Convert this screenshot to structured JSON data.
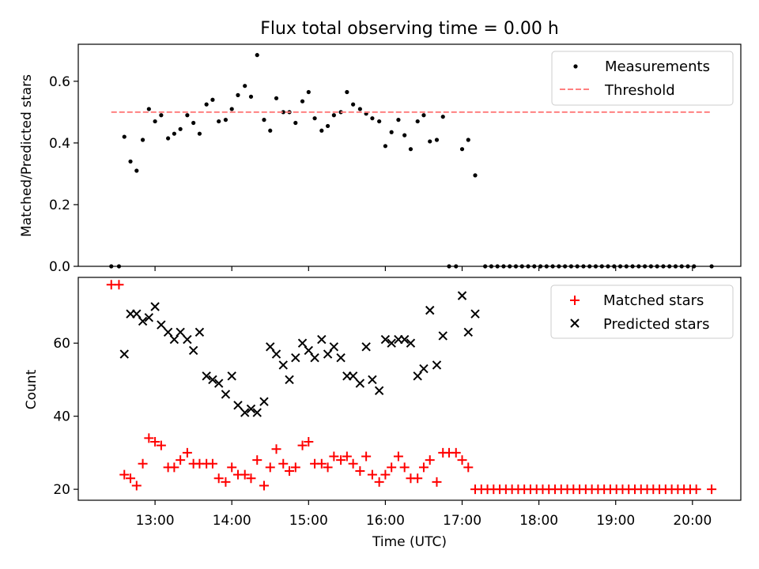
{
  "figure": {
    "title": "Flux total observing time = 0.00 h"
  },
  "chart_data": [
    {
      "type": "scatter",
      "xlabel": "",
      "ylabel": "Matched/Predicted stars",
      "xlim": [
        12.0,
        20.63
      ],
      "ylim": [
        0.0,
        0.72
      ],
      "yticks": [
        0.0,
        0.2,
        0.4,
        0.6
      ],
      "ytick_labels": [
        "0.0",
        "0.2",
        "0.4",
        "0.6"
      ],
      "grid": false,
      "legend": {
        "placement": "top-right",
        "entries": [
          "Measurements",
          "Threshold"
        ]
      },
      "series": [
        {
          "name": "Measurements",
          "marker": "dot",
          "color": "#000000",
          "points": [
            [
              12.43,
              0.0
            ],
            [
              12.53,
              0.0
            ],
            [
              12.6,
              0.42
            ],
            [
              12.68,
              0.34
            ],
            [
              12.76,
              0.31
            ],
            [
              12.84,
              0.41
            ],
            [
              12.92,
              0.51
            ],
            [
              13.0,
              0.47
            ],
            [
              13.08,
              0.49
            ],
            [
              13.17,
              0.415
            ],
            [
              13.25,
              0.43
            ],
            [
              13.33,
              0.445
            ],
            [
              13.42,
              0.49
            ],
            [
              13.5,
              0.465
            ],
            [
              13.58,
              0.43
            ],
            [
              13.67,
              0.525
            ],
            [
              13.75,
              0.54
            ],
            [
              13.83,
              0.47
            ],
            [
              13.92,
              0.475
            ],
            [
              14.0,
              0.51
            ],
            [
              14.08,
              0.555
            ],
            [
              14.17,
              0.585
            ],
            [
              14.25,
              0.55
            ],
            [
              14.33,
              0.685
            ],
            [
              14.42,
              0.475
            ],
            [
              14.5,
              0.44
            ],
            [
              14.58,
              0.545
            ],
            [
              14.67,
              0.5
            ],
            [
              14.75,
              0.5
            ],
            [
              14.83,
              0.465
            ],
            [
              14.92,
              0.535
            ],
            [
              15.0,
              0.565
            ],
            [
              15.08,
              0.48
            ],
            [
              15.17,
              0.44
            ],
            [
              15.25,
              0.455
            ],
            [
              15.33,
              0.49
            ],
            [
              15.42,
              0.5
            ],
            [
              15.5,
              0.565
            ],
            [
              15.58,
              0.525
            ],
            [
              15.67,
              0.51
            ],
            [
              15.75,
              0.495
            ],
            [
              15.83,
              0.48
            ],
            [
              15.92,
              0.47
            ],
            [
              16.0,
              0.39
            ],
            [
              16.08,
              0.435
            ],
            [
              16.17,
              0.475
            ],
            [
              16.25,
              0.425
            ],
            [
              16.33,
              0.38
            ],
            [
              16.42,
              0.47
            ],
            [
              16.5,
              0.49
            ],
            [
              16.58,
              0.405
            ],
            [
              16.67,
              0.41
            ],
            [
              16.75,
              0.485
            ],
            [
              16.83,
              0.0
            ],
            [
              16.92,
              0.0
            ],
            [
              17.0,
              0.38
            ],
            [
              17.08,
              0.41
            ],
            [
              17.17,
              0.295
            ],
            [
              17.3,
              0.0
            ],
            [
              17.38,
              0.0
            ],
            [
              17.46,
              0.0
            ],
            [
              17.54,
              0.0
            ],
            [
              17.62,
              0.0
            ],
            [
              17.7,
              0.0
            ],
            [
              17.78,
              0.0
            ],
            [
              17.86,
              0.0
            ],
            [
              17.94,
              0.0
            ],
            [
              18.02,
              0.0
            ],
            [
              18.1,
              0.0
            ],
            [
              18.18,
              0.0
            ],
            [
              18.26,
              0.0
            ],
            [
              18.34,
              0.0
            ],
            [
              18.42,
              0.0
            ],
            [
              18.5,
              0.0
            ],
            [
              18.58,
              0.0
            ],
            [
              18.66,
              0.0
            ],
            [
              18.74,
              0.0
            ],
            [
              18.82,
              0.0
            ],
            [
              18.9,
              0.0
            ],
            [
              18.98,
              0.0
            ],
            [
              19.06,
              0.0
            ],
            [
              19.14,
              0.0
            ],
            [
              19.22,
              0.0
            ],
            [
              19.3,
              0.0
            ],
            [
              19.38,
              0.0
            ],
            [
              19.46,
              0.0
            ],
            [
              19.54,
              0.0
            ],
            [
              19.62,
              0.0
            ],
            [
              19.7,
              0.0
            ],
            [
              19.78,
              0.0
            ],
            [
              19.86,
              0.0
            ],
            [
              19.94,
              0.0
            ],
            [
              20.02,
              0.0
            ],
            [
              20.25,
              0.0
            ]
          ]
        },
        {
          "name": "Threshold",
          "line": "dashed",
          "color": "#ff8080",
          "points": [
            [
              12.43,
              0.5
            ],
            [
              20.23,
              0.5
            ]
          ]
        }
      ]
    },
    {
      "type": "scatter",
      "xlabel": "Time (UTC)",
      "ylabel": "Count",
      "xlim": [
        12.0,
        20.63
      ],
      "ylim": [
        17.0,
        78.0
      ],
      "yticks": [
        20,
        40,
        60
      ],
      "ytick_labels": [
        "20",
        "40",
        "60"
      ],
      "xticks": [
        13,
        14,
        15,
        16,
        17,
        18,
        19,
        20
      ],
      "xtick_labels": [
        "13:00",
        "14:00",
        "15:00",
        "16:00",
        "17:00",
        "18:00",
        "19:00",
        "20:00"
      ],
      "grid": false,
      "legend": {
        "placement": "top-right",
        "entries": [
          "Matched stars",
          "Predicted stars"
        ]
      },
      "series": [
        {
          "name": "Matched stars",
          "marker": "plus",
          "color": "#ff0000",
          "points": [
            [
              12.43,
              76
            ],
            [
              12.53,
              76
            ],
            [
              12.6,
              24
            ],
            [
              12.68,
              23
            ],
            [
              12.76,
              21
            ],
            [
              12.84,
              27
            ],
            [
              12.92,
              34
            ],
            [
              13.0,
              33
            ],
            [
              13.08,
              32
            ],
            [
              13.17,
              26
            ],
            [
              13.25,
              26
            ],
            [
              13.33,
              28
            ],
            [
              13.42,
              30
            ],
            [
              13.5,
              27
            ],
            [
              13.58,
              27
            ],
            [
              13.67,
              27
            ],
            [
              13.75,
              27
            ],
            [
              13.83,
              23
            ],
            [
              13.92,
              22
            ],
            [
              14.0,
              26
            ],
            [
              14.08,
              24
            ],
            [
              14.17,
              24
            ],
            [
              14.25,
              23
            ],
            [
              14.33,
              28
            ],
            [
              14.42,
              21
            ],
            [
              14.5,
              26
            ],
            [
              14.58,
              31
            ],
            [
              14.67,
              27
            ],
            [
              14.75,
              25
            ],
            [
              14.83,
              26
            ],
            [
              14.92,
              32
            ],
            [
              15.0,
              33
            ],
            [
              15.08,
              27
            ],
            [
              15.17,
              27
            ],
            [
              15.25,
              26
            ],
            [
              15.33,
              29
            ],
            [
              15.42,
              28
            ],
            [
              15.5,
              29
            ],
            [
              15.58,
              27
            ],
            [
              15.67,
              25
            ],
            [
              15.75,
              29
            ],
            [
              15.83,
              24
            ],
            [
              15.92,
              22
            ],
            [
              16.0,
              24
            ],
            [
              16.08,
              26
            ],
            [
              16.17,
              29
            ],
            [
              16.25,
              26
            ],
            [
              16.33,
              23
            ],
            [
              16.42,
              23
            ],
            [
              16.5,
              26
            ],
            [
              16.58,
              28
            ],
            [
              16.67,
              22
            ],
            [
              16.75,
              30
            ],
            [
              16.83,
              30
            ],
            [
              16.92,
              30
            ],
            [
              17.0,
              28
            ],
            [
              17.08,
              26
            ],
            [
              17.17,
              20
            ],
            [
              17.25,
              20
            ],
            [
              17.33,
              20
            ],
            [
              17.41,
              20
            ],
            [
              17.49,
              20
            ],
            [
              17.57,
              20
            ],
            [
              17.65,
              20
            ],
            [
              17.73,
              20
            ],
            [
              17.81,
              20
            ],
            [
              17.89,
              20
            ],
            [
              17.97,
              20
            ],
            [
              18.05,
              20
            ],
            [
              18.13,
              20
            ],
            [
              18.21,
              20
            ],
            [
              18.29,
              20
            ],
            [
              18.37,
              20
            ],
            [
              18.45,
              20
            ],
            [
              18.53,
              20
            ],
            [
              18.61,
              20
            ],
            [
              18.69,
              20
            ],
            [
              18.77,
              20
            ],
            [
              18.85,
              20
            ],
            [
              18.93,
              20
            ],
            [
              19.01,
              20
            ],
            [
              19.09,
              20
            ],
            [
              19.17,
              20
            ],
            [
              19.25,
              20
            ],
            [
              19.33,
              20
            ],
            [
              19.41,
              20
            ],
            [
              19.49,
              20
            ],
            [
              19.57,
              20
            ],
            [
              19.65,
              20
            ],
            [
              19.73,
              20
            ],
            [
              19.81,
              20
            ],
            [
              19.89,
              20
            ],
            [
              19.97,
              20
            ],
            [
              20.05,
              20
            ],
            [
              20.25,
              20
            ]
          ]
        },
        {
          "name": "Predicted stars",
          "marker": "x",
          "color": "#000000",
          "points": [
            [
              12.6,
              57
            ],
            [
              12.68,
              68
            ],
            [
              12.76,
              68
            ],
            [
              12.84,
              66
            ],
            [
              12.92,
              67
            ],
            [
              13.0,
              70
            ],
            [
              13.08,
              65
            ],
            [
              13.17,
              63
            ],
            [
              13.25,
              61
            ],
            [
              13.33,
              63
            ],
            [
              13.42,
              61
            ],
            [
              13.5,
              58
            ],
            [
              13.58,
              63
            ],
            [
              13.67,
              51
            ],
            [
              13.75,
              50
            ],
            [
              13.83,
              49
            ],
            [
              13.92,
              46
            ],
            [
              14.0,
              51
            ],
            [
              14.08,
              43
            ],
            [
              14.17,
              41
            ],
            [
              14.25,
              42
            ],
            [
              14.33,
              41
            ],
            [
              14.42,
              44
            ],
            [
              14.5,
              59
            ],
            [
              14.58,
              57
            ],
            [
              14.67,
              54
            ],
            [
              14.75,
              50
            ],
            [
              14.83,
              56
            ],
            [
              14.92,
              60
            ],
            [
              15.0,
              58
            ],
            [
              15.08,
              56
            ],
            [
              15.17,
              61
            ],
            [
              15.25,
              57
            ],
            [
              15.33,
              59
            ],
            [
              15.42,
              56
            ],
            [
              15.5,
              51
            ],
            [
              15.58,
              51
            ],
            [
              15.67,
              49
            ],
            [
              15.75,
              59
            ],
            [
              15.83,
              50
            ],
            [
              15.92,
              47
            ],
            [
              16.0,
              61
            ],
            [
              16.08,
              60
            ],
            [
              16.17,
              61
            ],
            [
              16.25,
              61
            ],
            [
              16.33,
              60
            ],
            [
              16.42,
              51
            ],
            [
              16.5,
              53
            ],
            [
              16.58,
              69
            ],
            [
              16.67,
              54
            ],
            [
              16.75,
              62
            ],
            [
              17.0,
              73
            ],
            [
              17.08,
              63
            ],
            [
              17.17,
              68
            ]
          ]
        }
      ]
    }
  ]
}
